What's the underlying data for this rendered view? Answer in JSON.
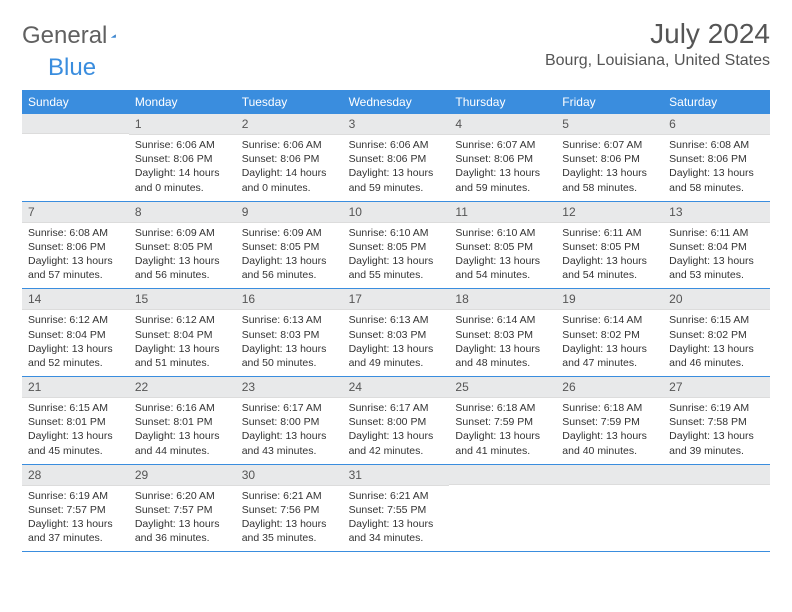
{
  "brand": {
    "part1": "General",
    "part2": "Blue"
  },
  "title": "July 2024",
  "location": "Bourg, Louisiana, United States",
  "colors": {
    "header_bg": "#3a8dde",
    "daynum_bg": "#e8e9ea",
    "week_border": "#3a8dde",
    "text": "#333333",
    "title_text": "#555555"
  },
  "day_names": [
    "Sunday",
    "Monday",
    "Tuesday",
    "Wednesday",
    "Thursday",
    "Friday",
    "Saturday"
  ],
  "weeks": [
    [
      {
        "day": "",
        "sunrise": "",
        "sunset": "",
        "daylight": ""
      },
      {
        "day": "1",
        "sunrise": "Sunrise: 6:06 AM",
        "sunset": "Sunset: 8:06 PM",
        "daylight": "Daylight: 14 hours and 0 minutes."
      },
      {
        "day": "2",
        "sunrise": "Sunrise: 6:06 AM",
        "sunset": "Sunset: 8:06 PM",
        "daylight": "Daylight: 14 hours and 0 minutes."
      },
      {
        "day": "3",
        "sunrise": "Sunrise: 6:06 AM",
        "sunset": "Sunset: 8:06 PM",
        "daylight": "Daylight: 13 hours and 59 minutes."
      },
      {
        "day": "4",
        "sunrise": "Sunrise: 6:07 AM",
        "sunset": "Sunset: 8:06 PM",
        "daylight": "Daylight: 13 hours and 59 minutes."
      },
      {
        "day": "5",
        "sunrise": "Sunrise: 6:07 AM",
        "sunset": "Sunset: 8:06 PM",
        "daylight": "Daylight: 13 hours and 58 minutes."
      },
      {
        "day": "6",
        "sunrise": "Sunrise: 6:08 AM",
        "sunset": "Sunset: 8:06 PM",
        "daylight": "Daylight: 13 hours and 58 minutes."
      }
    ],
    [
      {
        "day": "7",
        "sunrise": "Sunrise: 6:08 AM",
        "sunset": "Sunset: 8:06 PM",
        "daylight": "Daylight: 13 hours and 57 minutes."
      },
      {
        "day": "8",
        "sunrise": "Sunrise: 6:09 AM",
        "sunset": "Sunset: 8:05 PM",
        "daylight": "Daylight: 13 hours and 56 minutes."
      },
      {
        "day": "9",
        "sunrise": "Sunrise: 6:09 AM",
        "sunset": "Sunset: 8:05 PM",
        "daylight": "Daylight: 13 hours and 56 minutes."
      },
      {
        "day": "10",
        "sunrise": "Sunrise: 6:10 AM",
        "sunset": "Sunset: 8:05 PM",
        "daylight": "Daylight: 13 hours and 55 minutes."
      },
      {
        "day": "11",
        "sunrise": "Sunrise: 6:10 AM",
        "sunset": "Sunset: 8:05 PM",
        "daylight": "Daylight: 13 hours and 54 minutes."
      },
      {
        "day": "12",
        "sunrise": "Sunrise: 6:11 AM",
        "sunset": "Sunset: 8:05 PM",
        "daylight": "Daylight: 13 hours and 54 minutes."
      },
      {
        "day": "13",
        "sunrise": "Sunrise: 6:11 AM",
        "sunset": "Sunset: 8:04 PM",
        "daylight": "Daylight: 13 hours and 53 minutes."
      }
    ],
    [
      {
        "day": "14",
        "sunrise": "Sunrise: 6:12 AM",
        "sunset": "Sunset: 8:04 PM",
        "daylight": "Daylight: 13 hours and 52 minutes."
      },
      {
        "day": "15",
        "sunrise": "Sunrise: 6:12 AM",
        "sunset": "Sunset: 8:04 PM",
        "daylight": "Daylight: 13 hours and 51 minutes."
      },
      {
        "day": "16",
        "sunrise": "Sunrise: 6:13 AM",
        "sunset": "Sunset: 8:03 PM",
        "daylight": "Daylight: 13 hours and 50 minutes."
      },
      {
        "day": "17",
        "sunrise": "Sunrise: 6:13 AM",
        "sunset": "Sunset: 8:03 PM",
        "daylight": "Daylight: 13 hours and 49 minutes."
      },
      {
        "day": "18",
        "sunrise": "Sunrise: 6:14 AM",
        "sunset": "Sunset: 8:03 PM",
        "daylight": "Daylight: 13 hours and 48 minutes."
      },
      {
        "day": "19",
        "sunrise": "Sunrise: 6:14 AM",
        "sunset": "Sunset: 8:02 PM",
        "daylight": "Daylight: 13 hours and 47 minutes."
      },
      {
        "day": "20",
        "sunrise": "Sunrise: 6:15 AM",
        "sunset": "Sunset: 8:02 PM",
        "daylight": "Daylight: 13 hours and 46 minutes."
      }
    ],
    [
      {
        "day": "21",
        "sunrise": "Sunrise: 6:15 AM",
        "sunset": "Sunset: 8:01 PM",
        "daylight": "Daylight: 13 hours and 45 minutes."
      },
      {
        "day": "22",
        "sunrise": "Sunrise: 6:16 AM",
        "sunset": "Sunset: 8:01 PM",
        "daylight": "Daylight: 13 hours and 44 minutes."
      },
      {
        "day": "23",
        "sunrise": "Sunrise: 6:17 AM",
        "sunset": "Sunset: 8:00 PM",
        "daylight": "Daylight: 13 hours and 43 minutes."
      },
      {
        "day": "24",
        "sunrise": "Sunrise: 6:17 AM",
        "sunset": "Sunset: 8:00 PM",
        "daylight": "Daylight: 13 hours and 42 minutes."
      },
      {
        "day": "25",
        "sunrise": "Sunrise: 6:18 AM",
        "sunset": "Sunset: 7:59 PM",
        "daylight": "Daylight: 13 hours and 41 minutes."
      },
      {
        "day": "26",
        "sunrise": "Sunrise: 6:18 AM",
        "sunset": "Sunset: 7:59 PM",
        "daylight": "Daylight: 13 hours and 40 minutes."
      },
      {
        "day": "27",
        "sunrise": "Sunrise: 6:19 AM",
        "sunset": "Sunset: 7:58 PM",
        "daylight": "Daylight: 13 hours and 39 minutes."
      }
    ],
    [
      {
        "day": "28",
        "sunrise": "Sunrise: 6:19 AM",
        "sunset": "Sunset: 7:57 PM",
        "daylight": "Daylight: 13 hours and 37 minutes."
      },
      {
        "day": "29",
        "sunrise": "Sunrise: 6:20 AM",
        "sunset": "Sunset: 7:57 PM",
        "daylight": "Daylight: 13 hours and 36 minutes."
      },
      {
        "day": "30",
        "sunrise": "Sunrise: 6:21 AM",
        "sunset": "Sunset: 7:56 PM",
        "daylight": "Daylight: 13 hours and 35 minutes."
      },
      {
        "day": "31",
        "sunrise": "Sunrise: 6:21 AM",
        "sunset": "Sunset: 7:55 PM",
        "daylight": "Daylight: 13 hours and 34 minutes."
      },
      {
        "day": "",
        "sunrise": "",
        "sunset": "",
        "daylight": ""
      },
      {
        "day": "",
        "sunrise": "",
        "sunset": "",
        "daylight": ""
      },
      {
        "day": "",
        "sunrise": "",
        "sunset": "",
        "daylight": ""
      }
    ]
  ]
}
